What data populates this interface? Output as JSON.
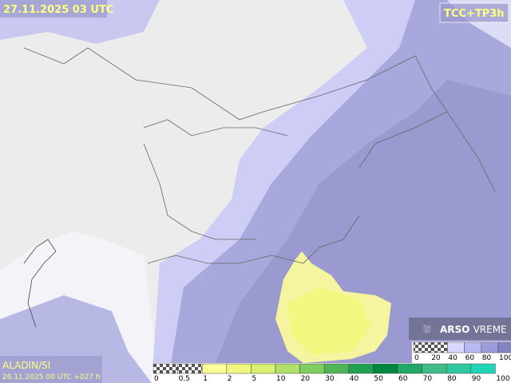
{
  "header": {
    "valid_time": "27.11.2025 03 UTC",
    "product": "TCC+TP3h"
  },
  "footer": {
    "model": "ALADIN/SI",
    "run": "26.11.2025 00 UTC +027 h"
  },
  "brand": {
    "name": "ARSO",
    "sub": "VREME"
  },
  "cloud_legend": {
    "labels": [
      0,
      20,
      40,
      60,
      80,
      100
    ],
    "colors": [
      "checker",
      "checker",
      "#d8d8ff",
      "#b8b8f0",
      "#9c9cdc",
      "#8484c4"
    ]
  },
  "precip_legend": {
    "labels": [
      0,
      0.5,
      1,
      2,
      5,
      10,
      20,
      30,
      40,
      50,
      60,
      70,
      80,
      90,
      100
    ],
    "colors": [
      "checker",
      "checker",
      "#ffff99",
      "#f0f880",
      "#d8f070",
      "#b0e068",
      "#80cc60",
      "#50b458",
      "#20a050",
      "#008840",
      "#20a868",
      "#40bc88",
      "#30c8a0",
      "#20d4b8"
    ]
  }
}
